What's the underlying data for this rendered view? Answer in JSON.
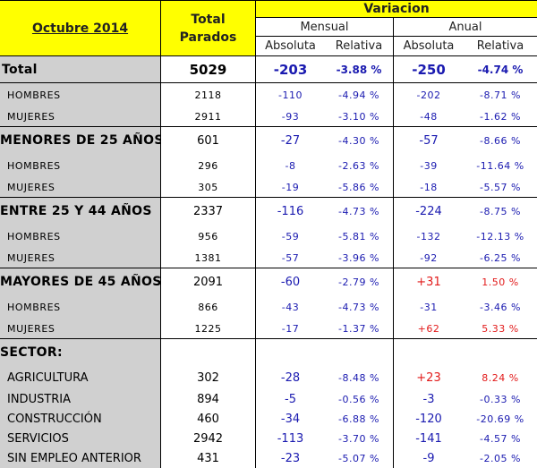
{
  "header": {
    "period": "Octubre 2014",
    "total_line1": "Total",
    "total_line2": "Parados",
    "variation": "Variacion",
    "monthly": "Mensual",
    "annual": "Anual",
    "absolute": "Absoluta",
    "relative": "Relativa"
  },
  "rows": [
    {
      "label": "Total",
      "total": "5029",
      "m_abs": "-203",
      "m_rel": "-3.88 %",
      "a_abs": "-250",
      "a_rel": "-4.74 %"
    },
    {
      "label": "HOMBRES",
      "total": "2118",
      "m_abs": "-110",
      "m_rel": "-4.94 %",
      "a_abs": "-202",
      "a_rel": "-8.71 %"
    },
    {
      "label": "MUJERES",
      "total": "2911",
      "m_abs": "-93",
      "m_rel": "-3.10 %",
      "a_abs": "-48",
      "a_rel": "-1.62 %"
    },
    {
      "label": "MENORES DE 25 AÑOS:",
      "total": "601",
      "m_abs": "-27",
      "m_rel": "-4.30 %",
      "a_abs": "-57",
      "a_rel": "-8.66 %"
    },
    {
      "label": "HOMBRES",
      "total": "296",
      "m_abs": "-8",
      "m_rel": "-2.63 %",
      "a_abs": "-39",
      "a_rel": "-11.64 %"
    },
    {
      "label": "MUJERES",
      "total": "305",
      "m_abs": "-19",
      "m_rel": "-5.86 %",
      "a_abs": "-18",
      "a_rel": "-5.57 %"
    },
    {
      "label": "ENTRE 25 Y 44 AÑOS",
      "total": "2337",
      "m_abs": "-116",
      "m_rel": "-4.73 %",
      "a_abs": "-224",
      "a_rel": "-8.75 %"
    },
    {
      "label": "HOMBRES",
      "total": "956",
      "m_abs": "-59",
      "m_rel": "-5.81 %",
      "a_abs": "-132",
      "a_rel": "-12.13 %"
    },
    {
      "label": "MUJERES",
      "total": "1381",
      "m_abs": "-57",
      "m_rel": "-3.96 %",
      "a_abs": "-92",
      "a_rel": "-6.25 %"
    },
    {
      "label": "MAYORES DE 45 AÑOS",
      "total": "2091",
      "m_abs": "-60",
      "m_rel": "-2.79 %",
      "a_abs": "+31",
      "a_rel": "1.50 %"
    },
    {
      "label": "HOMBRES",
      "total": "866",
      "m_abs": "-43",
      "m_rel": "-4.73 %",
      "a_abs": "-31",
      "a_rel": "-3.46 %"
    },
    {
      "label": "MUJERES",
      "total": "1225",
      "m_abs": "-17",
      "m_rel": "-1.37 %",
      "a_abs": "+62",
      "a_rel": "5.33 %"
    },
    {
      "label": "SECTOR:",
      "total": "",
      "m_abs": "",
      "m_rel": "",
      "a_abs": "",
      "a_rel": ""
    },
    {
      "label": "AGRICULTURA",
      "total": "302",
      "m_abs": "-28",
      "m_rel": "-8.48 %",
      "a_abs": "+23",
      "a_rel": "8.24 %"
    },
    {
      "label": "INDUSTRIA",
      "total": "894",
      "m_abs": "-5",
      "m_rel": "-0.56 %",
      "a_abs": "-3",
      "a_rel": "-0.33 %"
    },
    {
      "label": "CONSTRUCCIÓN",
      "total": "460",
      "m_abs": "-34",
      "m_rel": "-6.88 %",
      "a_abs": "-120",
      "a_rel": "-20.69 %"
    },
    {
      "label": "SERVICIOS",
      "total": "2942",
      "m_abs": "-113",
      "m_rel": "-3.70 %",
      "a_abs": "-141",
      "a_rel": "-4.57 %"
    },
    {
      "label": "SIN EMPLEO ANTERIOR",
      "total": "431",
      "m_abs": "-23",
      "m_rel": "-5.07 %",
      "a_abs": "-9",
      "a_rel": "-2.05 %"
    }
  ],
  "colors": {
    "header_bg": "#ffff00",
    "label_bg": "#d0d0d0",
    "negative": "#1a1ab0",
    "positive": "#e21a1a"
  }
}
